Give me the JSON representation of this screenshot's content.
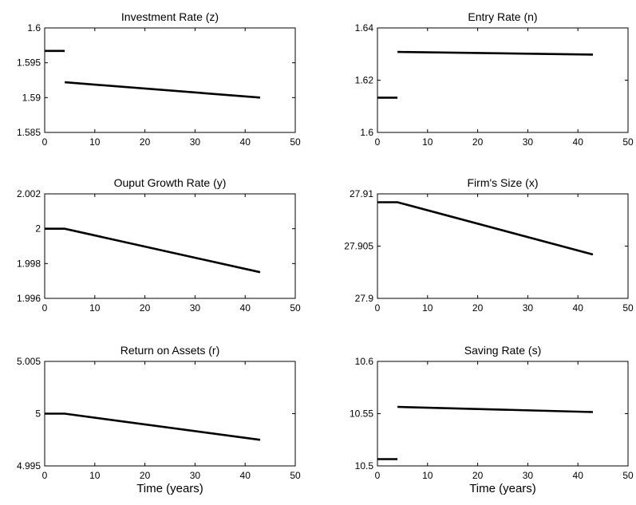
{
  "chart_data": [
    {
      "type": "line",
      "title": "Investment Rate (z)",
      "xlabel": "",
      "xlim": [
        0,
        50
      ],
      "ylim": [
        1.585,
        1.6
      ],
      "xticks": [
        "0",
        "10",
        "20",
        "30",
        "40",
        "50"
      ],
      "yticks": [
        "1.585",
        "1.59",
        "1.595",
        "1.6"
      ],
      "ytick_values": [
        1.585,
        1.59,
        1.595,
        1.6
      ],
      "grid": false,
      "series": [
        {
          "segments": [
            {
              "x": [
                0,
                4
              ],
              "y": [
                1.5967,
                1.5967
              ]
            },
            {
              "x": [
                4,
                43
              ],
              "y": [
                1.5922,
                1.59
              ]
            }
          ]
        }
      ]
    },
    {
      "type": "line",
      "title": "Entry Rate (n)",
      "xlabel": "",
      "xlim": [
        0,
        50
      ],
      "ylim": [
        1.6,
        1.64
      ],
      "xticks": [
        "0",
        "10",
        "20",
        "30",
        "40",
        "50"
      ],
      "yticks": [
        "1.6",
        "1.62",
        "1.64"
      ],
      "ytick_values": [
        1.6,
        1.62,
        1.64
      ],
      "grid": false,
      "series": [
        {
          "segments": [
            {
              "x": [
                0,
                4
              ],
              "y": [
                1.6133,
                1.6133
              ]
            },
            {
              "x": [
                4,
                43
              ],
              "y": [
                1.6308,
                1.6298
              ]
            }
          ]
        }
      ]
    },
    {
      "type": "line",
      "title": "Ouput Growth Rate (y)",
      "xlabel": "",
      "xlim": [
        0,
        50
      ],
      "ylim": [
        1.996,
        2.002
      ],
      "xticks": [
        "0",
        "10",
        "20",
        "30",
        "40",
        "50"
      ],
      "yticks": [
        "1.996",
        "1.998",
        "2",
        "2.002"
      ],
      "ytick_values": [
        1.996,
        1.998,
        2.0,
        2.002
      ],
      "grid": false,
      "series": [
        {
          "segments": [
            {
              "x": [
                0,
                4,
                43
              ],
              "y": [
                2.0,
                2.0,
                1.9975
              ]
            }
          ]
        }
      ]
    },
    {
      "type": "line",
      "title": "Firm's Size (x)",
      "xlabel": "",
      "xlim": [
        0,
        50
      ],
      "ylim": [
        27.9,
        27.91
      ],
      "xticks": [
        "0",
        "10",
        "20",
        "30",
        "40",
        "50"
      ],
      "yticks": [
        "27.9",
        "27.905",
        "27.91"
      ],
      "ytick_values": [
        27.9,
        27.905,
        27.91
      ],
      "grid": false,
      "series": [
        {
          "segments": [
            {
              "x": [
                0,
                4,
                43
              ],
              "y": [
                27.9092,
                27.9092,
                27.9042
              ]
            }
          ]
        }
      ]
    },
    {
      "type": "line",
      "title": "Return on Assets (r)",
      "xlabel": "Time (years)",
      "xlim": [
        0,
        50
      ],
      "ylim": [
        4.995,
        5.005
      ],
      "xticks": [
        "0",
        "10",
        "20",
        "30",
        "40",
        "50"
      ],
      "yticks": [
        "4.995",
        "5",
        "5.005"
      ],
      "ytick_values": [
        4.995,
        5.0,
        5.005
      ],
      "grid": false,
      "series": [
        {
          "segments": [
            {
              "x": [
                0,
                4,
                43
              ],
              "y": [
                5.0,
                5.0,
                4.9975
              ]
            }
          ]
        }
      ]
    },
    {
      "type": "line",
      "title": "Saving Rate (s)",
      "xlabel": "Time (years)",
      "xlim": [
        0,
        50
      ],
      "ylim": [
        10.5,
        10.6
      ],
      "xticks": [
        "0",
        "10",
        "20",
        "30",
        "40",
        "50"
      ],
      "yticks": [
        "10.5",
        "10.55",
        "10.6"
      ],
      "ytick_values": [
        10.5,
        10.55,
        10.6
      ],
      "grid": false,
      "series": [
        {
          "segments": [
            {
              "x": [
                0,
                4
              ],
              "y": [
                10.5065,
                10.5065
              ]
            },
            {
              "x": [
                4,
                43
              ],
              "y": [
                10.5565,
                10.5515
              ]
            }
          ]
        }
      ]
    }
  ]
}
